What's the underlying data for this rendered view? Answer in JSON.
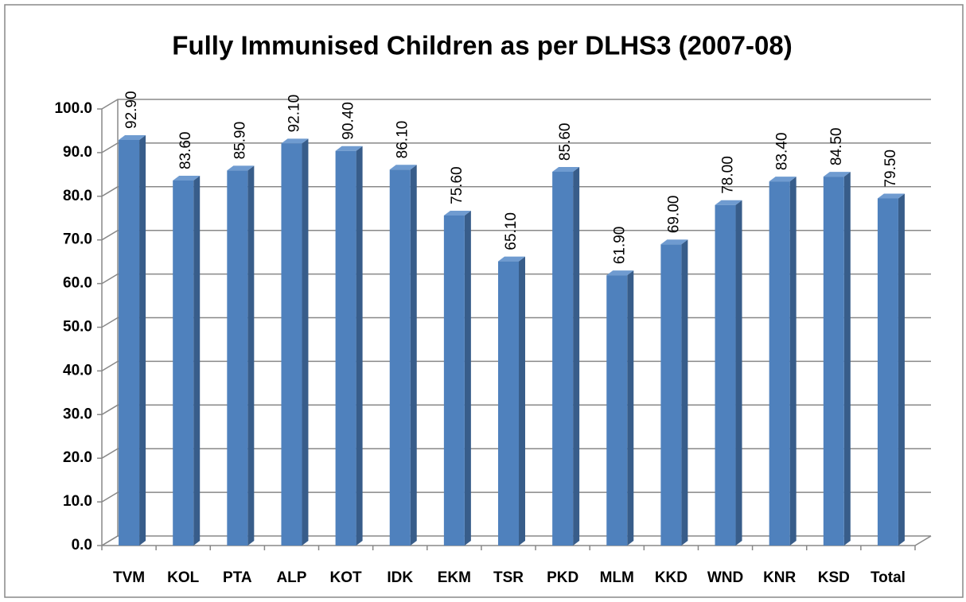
{
  "chart_data": {
    "type": "bar",
    "title": "Fully Immunised Children as per DLHS3 (2007-08)",
    "categories": [
      "TVM",
      "KOL",
      "PTA",
      "ALP",
      "KOT",
      "IDK",
      "EKM",
      "TSR",
      "PKD",
      "MLM",
      "KKD",
      "WND",
      "KNR",
      "KSD",
      "Total"
    ],
    "values": [
      92.9,
      83.6,
      85.9,
      92.1,
      90.4,
      86.1,
      75.6,
      65.1,
      85.6,
      61.9,
      69.0,
      78.0,
      83.4,
      84.5,
      79.5
    ],
    "value_labels": [
      "92.90",
      "83.60",
      "85.90",
      "92.10",
      "90.40",
      "86.10",
      "75.60",
      "65.10",
      "85.60",
      "61.90",
      "69.00",
      "78.00",
      "83.40",
      "84.50",
      "79.50"
    ],
    "color": "#4f81bd",
    "ylim": [
      0,
      100
    ],
    "yticks": [
      {
        "value": 0,
        "label": "0.0"
      },
      {
        "value": 10,
        "label": "10.0"
      },
      {
        "value": 20,
        "label": "20.0"
      },
      {
        "value": 30,
        "label": "30.0"
      },
      {
        "value": 40,
        "label": "40.0"
      },
      {
        "value": 50,
        "label": "50.0"
      },
      {
        "value": 60,
        "label": "60.0"
      },
      {
        "value": 70,
        "label": "70.0"
      },
      {
        "value": 80,
        "label": "80.0"
      },
      {
        "value": 90,
        "label": "90.0"
      },
      {
        "value": 100,
        "label": "100.0"
      }
    ],
    "grid": true
  }
}
